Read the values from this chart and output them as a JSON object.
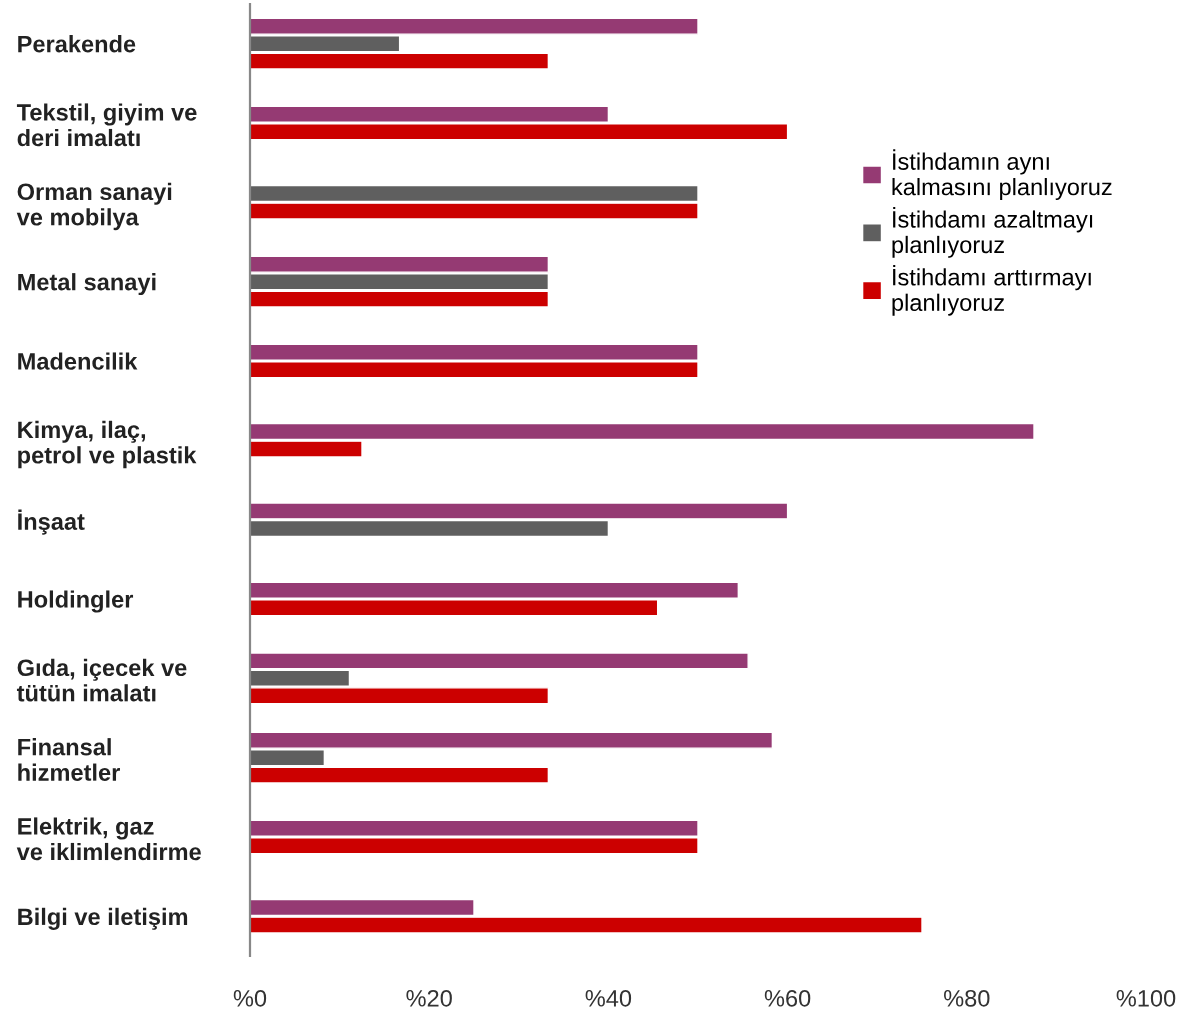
{
  "chart_data": {
    "type": "bar",
    "orientation": "horizontal",
    "categories": [
      "Perakende",
      "Tekstil, giyim ve\nderi imalatı",
      "Orman sanayi\nve mobilya",
      "Metal sanayi",
      "Madencilik",
      "Kimya, ilaç,\npetrol ve plastik",
      "İnşaat",
      "Holdingler",
      "Gıda, içecek ve\ntütün imalatı",
      "Finansal\nhizmetler",
      "Elektrik, gaz\nve iklimlendirme",
      "Bilgi ve iletişim"
    ],
    "series": [
      {
        "name": "İstihdamın aynı\nkalmasını planlıyoruz",
        "color": "#953a73",
        "values": [
          50,
          40,
          null,
          33.3,
          50,
          87.5,
          60,
          54.5,
          55.6,
          58.3,
          50,
          25
        ]
      },
      {
        "name": "İstihdamı azaltmayı\nplanlıyoruz",
        "color": "#5f5f5f",
        "values": [
          16.7,
          null,
          50,
          33.3,
          null,
          null,
          40,
          null,
          11.1,
          8.3,
          null,
          null
        ]
      },
      {
        "name": "İstihdamı arttırmayı\nplanlıyoruz",
        "color": "#cc0000",
        "values": [
          33.3,
          60,
          50,
          33.3,
          50,
          12.5,
          null,
          45.5,
          33.3,
          33.3,
          50,
          75
        ]
      }
    ],
    "xlim": [
      0,
      100
    ],
    "xticks": [
      {
        "value": 0,
        "label": "%0"
      },
      {
        "value": 20,
        "label": "%20"
      },
      {
        "value": 40,
        "label": "%40"
      },
      {
        "value": 60,
        "label": "%60"
      },
      {
        "value": 80,
        "label": "%80"
      },
      {
        "value": 100,
        "label": "%100"
      }
    ],
    "legend": "right",
    "grid": false
  }
}
